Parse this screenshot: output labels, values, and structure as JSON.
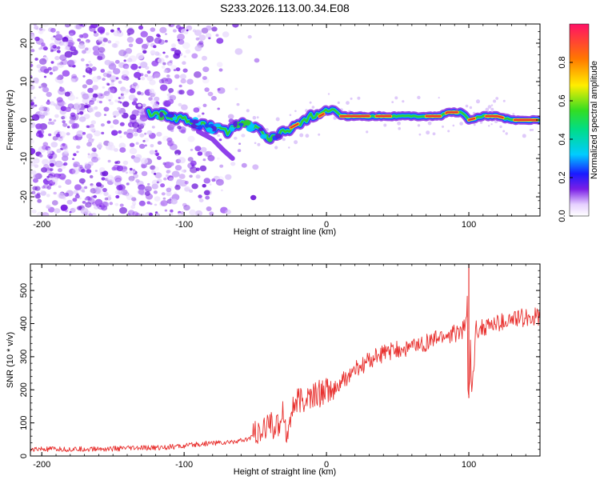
{
  "title": "S233.2026.113.00.34.E08",
  "colors": {
    "snr_line": "#e8302e",
    "cloud_violet": "#7b1fe8",
    "ridge_green": "#33cc33",
    "ridge_red": "#e8302e"
  },
  "chart_data": [
    {
      "type": "heatmap",
      "name": "spectrogram",
      "xlabel": "Height of straight line (km)",
      "ylabel": "Frequency (Hz)",
      "xlim": [
        -208,
        150
      ],
      "ylim": [
        -25,
        25
      ],
      "x_ticks": [
        -200,
        -100,
        0,
        100
      ],
      "x_tick_labels": [
        "-200",
        "-100",
        "0",
        "100"
      ],
      "y_ticks": [
        -20,
        -10,
        0,
        10,
        20
      ],
      "y_tick_labels": [
        "-20",
        "-10",
        "0",
        "10",
        "20"
      ],
      "ridge": {
        "x": [
          -125,
          -110,
          -100,
          -90,
          -80,
          -70,
          -60,
          -50,
          -45,
          -40,
          -35,
          -30,
          -25,
          -20,
          -15,
          -10,
          -5,
          0,
          5,
          10,
          20,
          40,
          60,
          80,
          85,
          90,
          95,
          100,
          110,
          120,
          130,
          150
        ],
        "y": [
          2,
          1,
          0,
          -1,
          -2,
          -3,
          -1,
          -2,
          -3,
          -5,
          -4,
          -3,
          -2,
          -1,
          0,
          1,
          1,
          2,
          3,
          1,
          1,
          1,
          1,
          1,
          2,
          2,
          2,
          0,
          1,
          1,
          0,
          0
        ]
      },
      "colorbar": {
        "label": "Normalized spectral amplitude",
        "range": [
          0,
          1
        ],
        "ticks": [
          0.0,
          0.2,
          0.4,
          0.6,
          0.8
        ],
        "tick_labels": [
          "0.0",
          "0.2",
          "0.4",
          "0.6",
          "0.8"
        ]
      }
    },
    {
      "type": "line",
      "name": "snr",
      "xlabel": "Height of straight line (km)",
      "ylabel": "SNR (10 * v/v)",
      "xlim": [
        -208,
        150
      ],
      "ylim": [
        0,
        580
      ],
      "x_ticks": [
        -200,
        -100,
        0,
        100
      ],
      "x_tick_labels": [
        "-200",
        "-100",
        "0",
        "100"
      ],
      "y_ticks": [
        0,
        100,
        200,
        300,
        400,
        500
      ],
      "y_tick_labels": [
        "0",
        "100",
        "200",
        "300",
        "400",
        "500"
      ],
      "series": [
        {
          "name": "SNR",
          "x": [
            -208,
            -180,
            -150,
            -120,
            -100,
            -90,
            -80,
            -70,
            -65,
            -60,
            -55,
            -50,
            -45,
            -40,
            -35,
            -30,
            -28,
            -25,
            -20,
            -15,
            -10,
            -5,
            0,
            5,
            10,
            15,
            20,
            25,
            30,
            40,
            50,
            60,
            70,
            80,
            90,
            95,
            98,
            100,
            102,
            105,
            110,
            120,
            130,
            140,
            150
          ],
          "y": [
            20,
            20,
            22,
            25,
            30,
            35,
            40,
            40,
            45,
            45,
            50,
            70,
            60,
            110,
            80,
            150,
            40,
            140,
            160,
            170,
            180,
            190,
            200,
            190,
            220,
            240,
            260,
            270,
            290,
            310,
            320,
            330,
            340,
            360,
            370,
            380,
            390,
            580,
            175,
            380,
            390,
            400,
            410,
            420,
            420
          ]
        }
      ],
      "spikes": [
        {
          "x": 100,
          "y": 580
        },
        {
          "x": 100,
          "y": 175
        }
      ]
    }
  ]
}
